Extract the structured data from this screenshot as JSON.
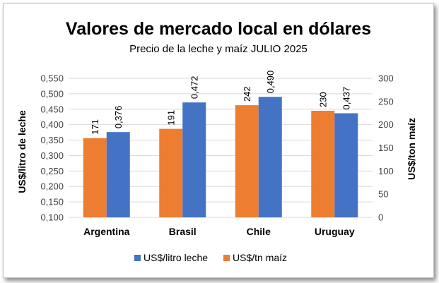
{
  "chart_data": {
    "type": "bar",
    "title": "Valores de mercado local en dólares",
    "subtitle": "Precio de la leche y maíz JULIO 2025",
    "categories": [
      "Argentina",
      "Brasil",
      "Chile",
      "Uruguay"
    ],
    "series": [
      {
        "name": "US$/litro leche",
        "axis": "left",
        "color": "#4472C4",
        "values": [
          0.376,
          0.472,
          0.49,
          0.437
        ],
        "labels": [
          "0,376",
          "0,472",
          "0,490",
          "0,437"
        ]
      },
      {
        "name": "US$/tn maíz",
        "axis": "right",
        "color": "#ED7D31",
        "values": [
          171,
          191,
          242,
          230
        ],
        "labels": [
          "171",
          "191",
          "242",
          "230"
        ]
      }
    ],
    "ylabel": "US$/litro de leche",
    "ylabel_right": "US$/ton maíz",
    "ylim": [
      0.1,
      0.55
    ],
    "ylim_right": [
      0,
      300
    ],
    "yticks": [
      "0,100",
      "0,150",
      "0,200",
      "0,250",
      "0,300",
      "0,350",
      "0,400",
      "0,450",
      "0,500",
      "0,550"
    ],
    "yticks_right": [
      "0",
      "50",
      "100",
      "150",
      "200",
      "250",
      "300"
    ],
    "grid": true,
    "legend_position": "bottom"
  }
}
